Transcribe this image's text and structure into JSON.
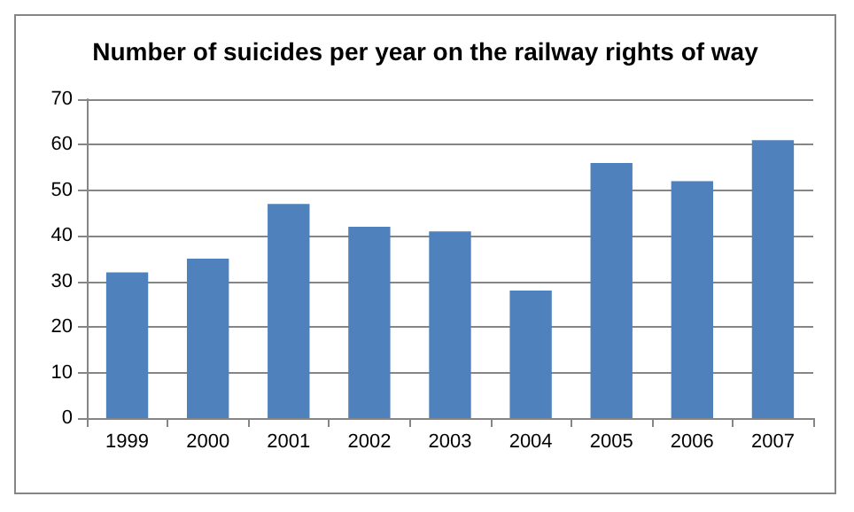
{
  "chart_data": {
    "type": "bar",
    "title": "Number of suicides per year on the railway rights of way",
    "categories": [
      "1999",
      "2000",
      "2001",
      "2002",
      "2003",
      "2004",
      "2005",
      "2006",
      "2007"
    ],
    "values": [
      32,
      35,
      47,
      42,
      41,
      28,
      56,
      52,
      61
    ],
    "color": "#4f81bd",
    "ylim": [
      0,
      70
    ],
    "yticks": [
      0,
      10,
      20,
      30,
      40,
      50,
      60,
      70
    ],
    "grid": "y"
  }
}
